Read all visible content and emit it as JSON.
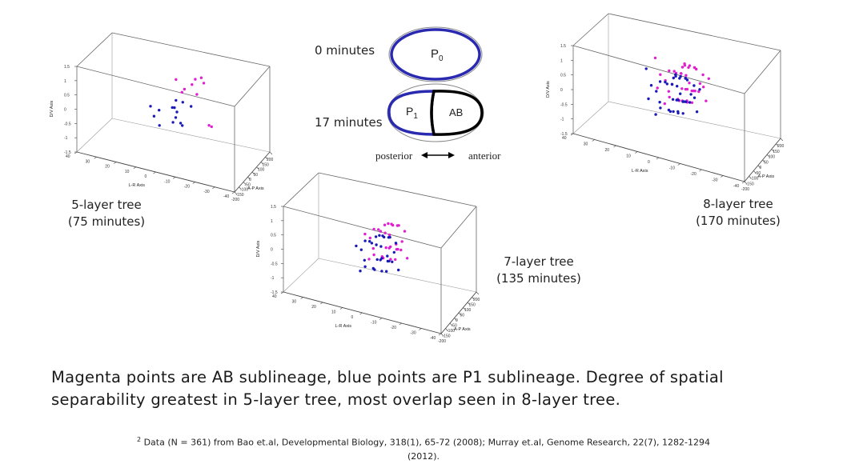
{
  "diagram": {
    "time0_label": "0 minutes",
    "time17_label": "17 minutes",
    "p0_label": "P",
    "p0_sub": "0",
    "p1_label": "P",
    "p1_sub": "1",
    "ab_label": "AB",
    "axis_left": "posterior",
    "axis_right": "anterior"
  },
  "plot_labels": {
    "plot5": {
      "name": "5-layer tree",
      "time": "(75 minutes)"
    },
    "plot7": {
      "name": "7-layer tree",
      "time": "(135 minutes)"
    },
    "plot8": {
      "name": "8-layer tree",
      "time": "(170 minutes)"
    }
  },
  "text": {
    "main_line1": "Magenta points are AB sublineage, blue points are P1 sublineage. Degree of spatial",
    "main_line2": "separability greatest in 5-layer tree, most overlap seen in 8-layer tree.",
    "footnote_sup": "2",
    "footnote_line1": " Data (N = 361) from Bao et.al, Developmental Biology, 318(1), 65-72 (2008); Murray et.al, Genome Research, 22(7), 1282-1294",
    "footnote_line2": "(2012)."
  },
  "colors": {
    "ab": "#e020d0",
    "p1": "#1a1ab8",
    "cell_blue": "#2a2ab0"
  },
  "chart_data": [
    {
      "type": "scatter",
      "id": "plot5",
      "xlabel": "A-P Axis",
      "ylabel": "L-R Axis",
      "zlabel": "D/V Axis",
      "xlim": [
        -200,
        200
      ],
      "ylim": [
        -40,
        40
      ],
      "zlim": [
        -1.5,
        1.5
      ],
      "xticks": [
        "-200",
        "-150",
        "-100",
        "-50",
        "0",
        "50",
        "100",
        "150",
        "200"
      ],
      "yticks": [
        "-40",
        "-30",
        "-20",
        "-10",
        "0",
        "10",
        "20",
        "30",
        "40"
      ],
      "zticks": [
        "-1.5",
        "-1",
        "-0.5",
        "0",
        "0.5",
        "1",
        "1.5"
      ],
      "series": [
        {
          "color": "ab",
          "points": [
            [
              93,
              -10,
              0.95
            ],
            [
              78,
              -12,
              0.85
            ],
            [
              100,
              -5,
              0.6
            ],
            [
              115,
              -6,
              0.75
            ],
            [
              82,
              -2,
              0.45
            ],
            [
              98,
              0,
              0.25
            ],
            [
              88,
              -8,
              0.35
            ],
            [
              120,
              4,
              0.55
            ],
            [
              70,
              -15,
              -0.55
            ],
            [
              76,
              -16,
              -0.6
            ]
          ]
        },
        {
          "color": "p1",
          "points": [
            [
              -22,
              -10,
              0.35
            ],
            [
              -72,
              4,
              0.15
            ],
            [
              -40,
              -3,
              -0.1
            ],
            [
              -62,
              7,
              -0.15
            ],
            [
              -32,
              -2,
              0.2
            ],
            [
              -12,
              0,
              0.1
            ],
            [
              -4,
              -2,
              -0.05
            ],
            [
              8,
              -1,
              0.3
            ],
            [
              18,
              -4,
              0.25
            ],
            [
              -52,
              -6,
              -0.2
            ],
            [
              -26,
              -1,
              -0.35
            ],
            [
              -45,
              5,
              -0.5
            ],
            [
              -10,
              -5,
              -0.45
            ],
            [
              -35,
              10,
              0.05
            ]
          ]
        }
      ]
    },
    {
      "type": "scatter",
      "id": "plot7",
      "xlabel": "A-P Axis",
      "ylabel": "L-R Axis",
      "zlabel": "D/V Axis",
      "xlim": [
        -200,
        200
      ],
      "ylim": [
        -40,
        40
      ],
      "zlim": [
        -1.5,
        1.5
      ],
      "xticks": [
        "-200",
        "-150",
        "-100",
        "-50",
        "0",
        "50",
        "100",
        "150",
        "200"
      ],
      "yticks": [
        "-40",
        "-30",
        "-20",
        "-10",
        "0",
        "10",
        "20",
        "30",
        "40"
      ],
      "zticks": [
        "-1.5",
        "-1",
        "-0.5",
        "0",
        "0.5",
        "1",
        "1.5"
      ],
      "series": [
        {
          "color": "ab",
          "points": [
            [
              20,
              -5,
              0.9
            ],
            [
              35,
              -8,
              0.85
            ],
            [
              50,
              -2,
              0.75
            ],
            [
              65,
              -6,
              0.7
            ],
            [
              80,
              -3,
              0.6
            ],
            [
              28,
              2,
              0.55
            ],
            [
              45,
              5,
              0.45
            ],
            [
              60,
              0,
              0.35
            ],
            [
              75,
              3,
              0.3
            ],
            [
              88,
              -1,
              0.2
            ],
            [
              15,
              -10,
              0.1
            ],
            [
              30,
              -4,
              0.05
            ],
            [
              48,
              -7,
              -0.05
            ],
            [
              62,
              -2,
              -0.15
            ],
            [
              78,
              -5,
              -0.2
            ],
            [
              92,
              1,
              -0.3
            ],
            [
              22,
              4,
              -0.35
            ],
            [
              38,
              0,
              -0.45
            ],
            [
              55,
              -3,
              -0.5
            ],
            [
              70,
              2,
              -0.55
            ],
            [
              85,
              -4,
              -0.6
            ],
            [
              5,
              -8,
              0.3
            ],
            [
              100,
              2,
              0.45
            ],
            [
              42,
              -12,
              -0.25
            ],
            [
              68,
              8,
              0.0
            ],
            [
              58,
              -10,
              0.6
            ],
            [
              95,
              -7,
              0.05
            ],
            [
              12,
              6,
              -0.5
            ],
            [
              32,
              9,
              0.25
            ],
            [
              82,
              7,
              -0.4
            ]
          ]
        },
        {
          "color": "p1",
          "points": [
            [
              -80,
              -5,
              0.85
            ],
            [
              -65,
              -8,
              0.8
            ],
            [
              -50,
              -2,
              0.7
            ],
            [
              -35,
              -6,
              0.65
            ],
            [
              -20,
              -3,
              0.55
            ],
            [
              -72,
              2,
              0.5
            ],
            [
              -55,
              5,
              0.4
            ],
            [
              -40,
              0,
              0.3
            ],
            [
              -25,
              3,
              0.25
            ],
            [
              -10,
              -1,
              0.15
            ],
            [
              -85,
              -10,
              0.05
            ],
            [
              -68,
              -4,
              0.0
            ],
            [
              -52,
              -7,
              -0.1
            ],
            [
              -38,
              -2,
              -0.2
            ],
            [
              -22,
              -5,
              -0.25
            ],
            [
              -8,
              1,
              -0.35
            ],
            [
              -78,
              4,
              -0.4
            ],
            [
              -60,
              0,
              -0.5
            ],
            [
              -45,
              -3,
              -0.55
            ],
            [
              -30,
              2,
              -0.6
            ],
            [
              -15,
              -4,
              -0.65
            ],
            [
              -95,
              -8,
              0.25
            ],
            [
              0,
              2,
              0.4
            ],
            [
              -58,
              -12,
              -0.3
            ],
            [
              -32,
              8,
              -0.05
            ],
            [
              -42,
              -10,
              0.55
            ],
            [
              5,
              -7,
              0.0
            ],
            [
              -88,
              6,
              -0.55
            ],
            [
              -68,
              9,
              0.2
            ],
            [
              -18,
              7,
              -0.45
            ]
          ]
        }
      ]
    },
    {
      "type": "scatter",
      "id": "plot8",
      "xlabel": "A-P Axis",
      "ylabel": "L-R Axis",
      "zlabel": "D/V Axis",
      "xlim": [
        -200,
        200
      ],
      "ylim": [
        -40,
        40
      ],
      "zlim": [
        -1.5,
        1.5
      ],
      "xticks": [
        "-200",
        "-150",
        "-100",
        "-50",
        "0",
        "50",
        "100",
        "150",
        "200"
      ],
      "yticks": [
        "-40",
        "-30",
        "-20",
        "-10",
        "0",
        "10",
        "20",
        "30",
        "40"
      ],
      "zticks": [
        "-1.5",
        "-1",
        "-0.5",
        "0",
        "0.5",
        "1",
        "1.5"
      ],
      "series": [
        {
          "color": "ab",
          "points": [
            [
              10,
              -5,
              0.9
            ],
            [
              25,
              -8,
              0.85
            ],
            [
              40,
              -2,
              0.8
            ],
            [
              55,
              -6,
              0.75
            ],
            [
              70,
              -3,
              0.7
            ],
            [
              85,
              0,
              0.65
            ],
            [
              100,
              -4,
              0.55
            ],
            [
              18,
              2,
              0.6
            ],
            [
              33,
              5,
              0.5
            ],
            [
              48,
              0,
              0.45
            ],
            [
              63,
              3,
              0.35
            ],
            [
              78,
              -1,
              0.3
            ],
            [
              93,
              2,
              0.25
            ],
            [
              5,
              -10,
              0.2
            ],
            [
              20,
              -4,
              0.1
            ],
            [
              35,
              -7,
              0.05
            ],
            [
              50,
              -2,
              -0.05
            ],
            [
              65,
              -5,
              -0.1
            ],
            [
              80,
              1,
              -0.2
            ],
            [
              95,
              -3,
              -0.25
            ],
            [
              12,
              4,
              -0.3
            ],
            [
              28,
              0,
              -0.4
            ],
            [
              43,
              -3,
              -0.45
            ],
            [
              58,
              2,
              -0.5
            ],
            [
              73,
              -4,
              -0.55
            ],
            [
              88,
              -1,
              -0.6
            ],
            [
              -5,
              -6,
              0.45
            ],
            [
              110,
              2,
              0.4
            ],
            [
              38,
              -12,
              -0.2
            ],
            [
              62,
              8,
              0.0
            ],
            [
              52,
              -10,
              0.6
            ],
            [
              90,
              -7,
              0.1
            ],
            [
              8,
              6,
              -0.55
            ],
            [
              30,
              9,
              0.3
            ],
            [
              76,
              7,
              -0.4
            ],
            [
              -10,
              -3,
              -0.2
            ],
            [
              105,
              -8,
              -0.05
            ],
            [
              45,
              12,
              0.75
            ],
            [
              68,
              -12,
              0.45
            ],
            [
              22,
              10,
              -0.15
            ]
          ]
        },
        {
          "color": "p1",
          "points": [
            [
              -90,
              -5,
              0.9
            ],
            [
              -75,
              -8,
              0.85
            ],
            [
              -60,
              -2,
              0.8
            ],
            [
              -45,
              -6,
              0.75
            ],
            [
              -30,
              -3,
              0.7
            ],
            [
              -15,
              0,
              0.65
            ],
            [
              0,
              -4,
              0.55
            ],
            [
              -82,
              2,
              0.6
            ],
            [
              -67,
              5,
              0.5
            ],
            [
              -52,
              0,
              0.45
            ],
            [
              -37,
              3,
              0.35
            ],
            [
              -22,
              -1,
              0.3
            ],
            [
              -7,
              2,
              0.25
            ],
            [
              -95,
              -10,
              0.2
            ],
            [
              -80,
              -4,
              0.1
            ],
            [
              -65,
              -7,
              0.05
            ],
            [
              -50,
              -2,
              -0.05
            ],
            [
              -35,
              -5,
              -0.1
            ],
            [
              -20,
              1,
              -0.2
            ],
            [
              -5,
              -3,
              -0.25
            ],
            [
              -88,
              4,
              -0.3
            ],
            [
              -72,
              0,
              -0.4
            ],
            [
              -57,
              -3,
              -0.45
            ],
            [
              -42,
              2,
              -0.5
            ],
            [
              -27,
              -4,
              -0.55
            ],
            [
              -12,
              -1,
              -0.6
            ],
            [
              -105,
              -6,
              0.45
            ],
            [
              10,
              2,
              0.4
            ],
            [
              -62,
              -12,
              -0.2
            ],
            [
              -38,
              8,
              0.0
            ],
            [
              -48,
              -10,
              0.6
            ],
            [
              -10,
              -7,
              0.1
            ],
            [
              -92,
              6,
              -0.55
            ],
            [
              -70,
              9,
              0.3
            ],
            [
              -24,
              7,
              -0.4
            ],
            [
              -110,
              -3,
              -0.2
            ],
            [
              5,
              -8,
              -0.05
            ],
            [
              -55,
              12,
              0.75
            ],
            [
              -32,
              -12,
              0.45
            ],
            [
              -78,
              10,
              -0.15
            ]
          ]
        }
      ]
    }
  ]
}
